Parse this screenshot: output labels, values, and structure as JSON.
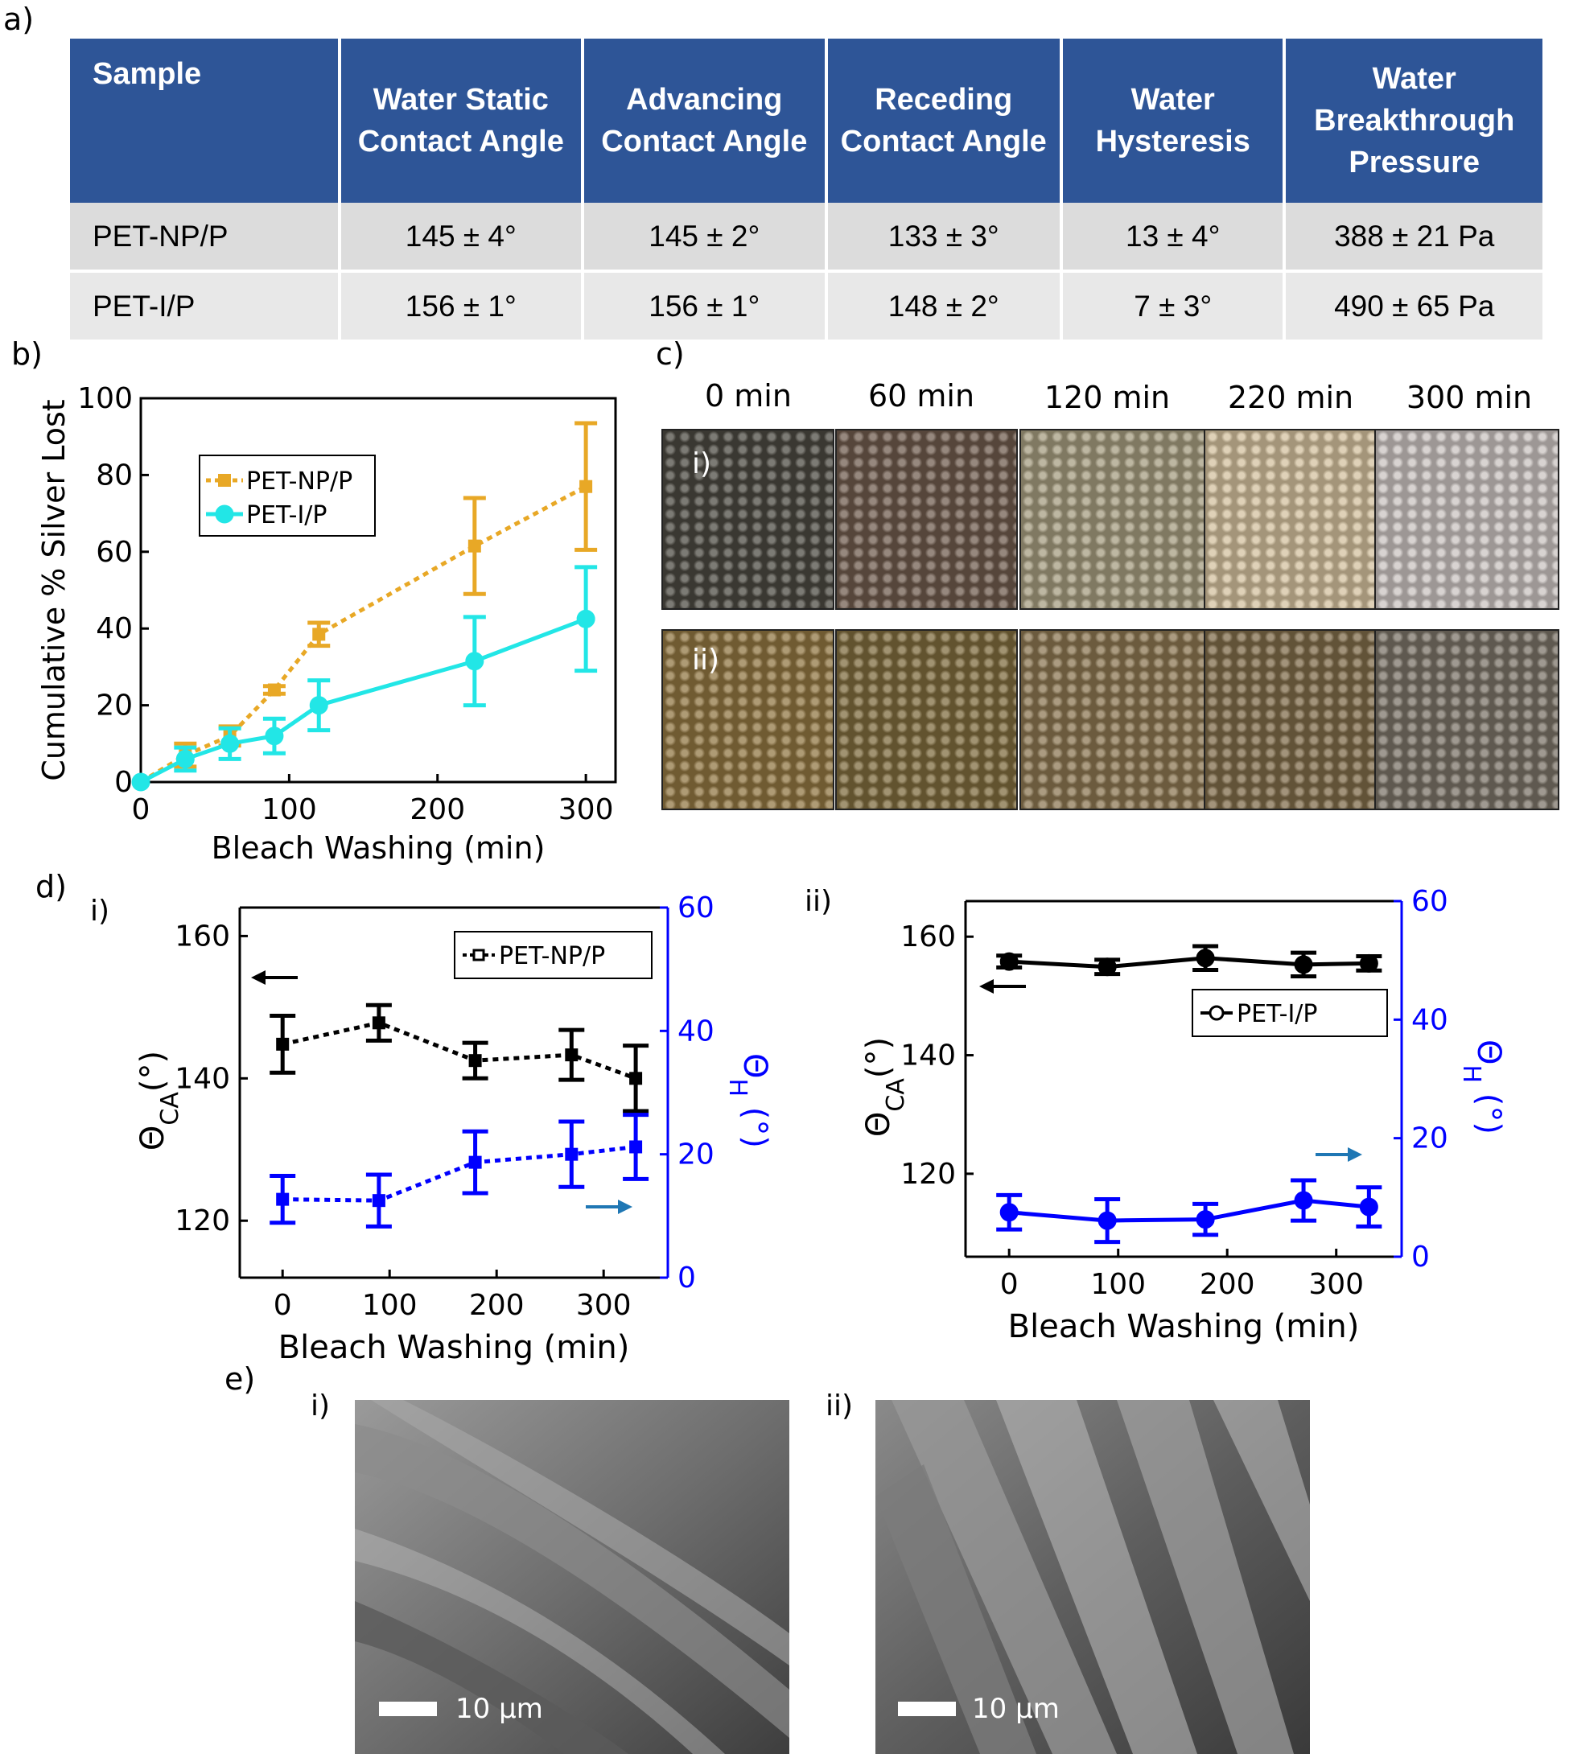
{
  "panel_labels": {
    "a": "a)",
    "b": "b)",
    "c": "c)",
    "d": "d)",
    "e": "e)"
  },
  "table": {
    "headers": [
      "Sample",
      "Water Static Contact Angle",
      "Advancing Contact Angle",
      "Receding Contact Angle",
      "Water Hysteresis",
      "Water Breakthrough Pressure"
    ],
    "rows": [
      [
        "PET-NP/P",
        "145 ± 4°",
        "145 ± 2°",
        "133 ± 3°",
        "13 ± 4°",
        "388 ± 21 Pa"
      ],
      [
        "PET-I/P",
        "156 ± 1°",
        "156 ± 1°",
        "148 ± 2°",
        "7 ± 3°",
        "490 ± 65 Pa"
      ]
    ]
  },
  "panel_c": {
    "times": [
      "0 min",
      "60 min",
      "120 min",
      "220 min",
      "300 min"
    ],
    "row_labels": [
      "i)",
      "ii)"
    ],
    "row_colors": [
      [
        "#4a4840",
        "#6e5a4c",
        "#a49b7e",
        "#d2bf9c",
        "#c9c2bf"
      ],
      [
        "#8f7440",
        "#7d6a3c",
        "#8a7550",
        "#7e6a48",
        "#7a7266"
      ]
    ]
  },
  "panel_d_labels": {
    "i": "i)",
    "ii": "ii)"
  },
  "panel_e": {
    "labels": [
      "i)",
      "ii)"
    ],
    "scale_bar": "10 µm"
  },
  "chart_data": [
    {
      "id": "b",
      "type": "line",
      "xlabel": "Bleach Washing (min)",
      "ylabel": "Cumulative % Silver Lost",
      "xlim": [
        0,
        320
      ],
      "ylim": [
        0,
        100
      ],
      "xticks": [
        0,
        100,
        200,
        300
      ],
      "yticks": [
        0,
        20,
        40,
        60,
        80,
        100
      ],
      "legend_position": "top-left",
      "series": [
        {
          "name": "PET-NP/P",
          "color": "#e8a826",
          "style": "dotted",
          "marker": "square",
          "x": [
            0,
            30,
            60,
            90,
            120,
            225,
            300
          ],
          "y": [
            0,
            7,
            12,
            24,
            38.5,
            61.5,
            77
          ],
          "err": [
            0,
            3,
            2.5,
            1,
            3,
            12.5,
            16.5
          ]
        },
        {
          "name": "PET-I/P",
          "color": "#22e6e6",
          "style": "solid",
          "marker": "circle",
          "x": [
            0,
            30,
            60,
            90,
            120,
            225,
            300
          ],
          "y": [
            0,
            6,
            10,
            12,
            20,
            31.5,
            42.5
          ],
          "err": [
            0,
            3,
            4,
            4.5,
            6.5,
            11.5,
            13.5
          ]
        }
      ]
    },
    {
      "id": "d-i",
      "type": "line",
      "xlabel": "Bleach Washing (min)",
      "ylabel_left": "Θ_CA(°)",
      "ylabel_right": "Θ_H (°)",
      "xlim": [
        -40,
        360
      ],
      "ylim_left": [
        112,
        164
      ],
      "ylim_right": [
        0,
        60
      ],
      "xticks": [
        0,
        100,
        200,
        300
      ],
      "yticks_left": [
        120,
        140,
        160
      ],
      "yticks_right": [
        0,
        20,
        40,
        60
      ],
      "legend_position": "top-right",
      "series": [
        {
          "name": "PET-NP/P",
          "axis": "left",
          "color": "#000000",
          "style": "dotted",
          "marker": "square",
          "x": [
            0,
            90,
            180,
            270,
            330
          ],
          "y": [
            144.8,
            147.8,
            142.5,
            143.3,
            140
          ],
          "err": [
            4,
            2.5,
            2.5,
            3.5,
            4.6
          ]
        },
        {
          "name": "",
          "axis": "right",
          "color": "#0000ff",
          "style": "dotted",
          "marker": "square",
          "x": [
            0,
            90,
            180,
            270,
            330
          ],
          "y": [
            12.7,
            12.5,
            18.7,
            20,
            21.2
          ],
          "err": [
            3.8,
            4.2,
            5,
            5.3,
            5.2
          ]
        }
      ]
    },
    {
      "id": "d-ii",
      "type": "line",
      "xlabel": "Bleach Washing (min)",
      "ylabel_left": "Θ_CA(°)",
      "ylabel_right": "Θ_H (°)",
      "xlim": [
        -40,
        360
      ],
      "ylim_left": [
        106,
        166
      ],
      "ylim_right": [
        0,
        60
      ],
      "xticks": [
        0,
        100,
        200,
        300
      ],
      "yticks_left": [
        120,
        140,
        160
      ],
      "yticks_right": [
        0,
        20,
        40,
        60
      ],
      "legend_position": "middle-right",
      "series": [
        {
          "name": "PET-I/P",
          "axis": "left",
          "color": "#000000",
          "style": "solid",
          "marker": "circle",
          "x": [
            0,
            90,
            180,
            270,
            330
          ],
          "y": [
            155.8,
            154.9,
            156.4,
            155.3,
            155.5
          ],
          "err": [
            1,
            1.2,
            2,
            2,
            1.2
          ]
        },
        {
          "name": "",
          "axis": "right",
          "color": "#0000ff",
          "style": "solid",
          "marker": "circle",
          "x": [
            0,
            90,
            180,
            270,
            330
          ],
          "y": [
            7.5,
            6.1,
            6.3,
            9.5,
            8.4
          ],
          "err": [
            2.9,
            3.6,
            2.6,
            3.4,
            3.3
          ]
        }
      ]
    }
  ]
}
